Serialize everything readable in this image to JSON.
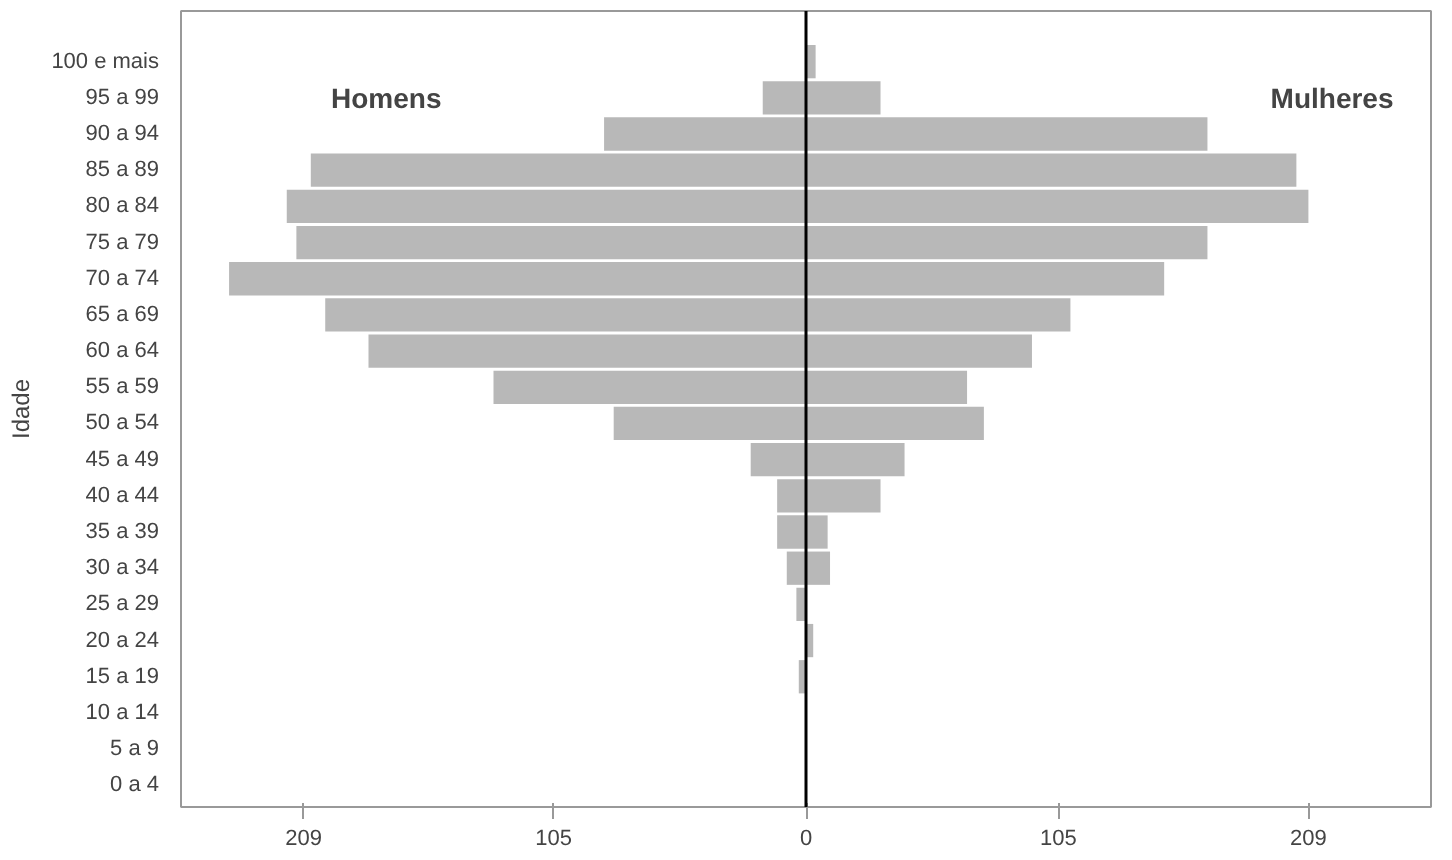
{
  "chart_data": {
    "type": "bar",
    "orientation": "horizontal",
    "ylabel": "Idade",
    "categories": [
      "100 e mais",
      "95 a 99",
      "90 a 94",
      "85 a 89",
      "80 a 84",
      "75 a 79",
      "70 a 74",
      "65 a 69",
      "60 a 64",
      "55 a 59",
      "50 a 54",
      "45 a 49",
      "40 a 44",
      "35 a 39",
      "30 a 34",
      "25 a 29",
      "20 a 24",
      "15 a 19",
      "10 a 14",
      "5 a 9",
      "0 a 4"
    ],
    "series": [
      {
        "name": "Homens",
        "color": "#b8b8b8",
        "values": [
          0,
          -18,
          -84,
          -206,
          -216,
          -212,
          -240,
          -200,
          -182,
          -130,
          -80,
          -23,
          -12,
          -12,
          -8,
          -4,
          0,
          -3,
          0,
          0,
          0
        ]
      },
      {
        "name": "Mulheres",
        "color": "#b8b8b8",
        "values": [
          4,
          31,
          167,
          204,
          209,
          167,
          149,
          110,
          94,
          67,
          74,
          41,
          31,
          9,
          10,
          0,
          3,
          0,
          0,
          0,
          0
        ]
      }
    ],
    "xlim": [
      -260,
      260
    ],
    "xticks": [
      {
        "value": -209,
        "label": "209"
      },
      {
        "value": -105,
        "label": "105"
      },
      0,
      105,
      209
    ],
    "ref_lines": [
      {
        "axis": "x",
        "value": 0,
        "color": "#000000"
      }
    ],
    "stacked": true,
    "grid": false
  }
}
